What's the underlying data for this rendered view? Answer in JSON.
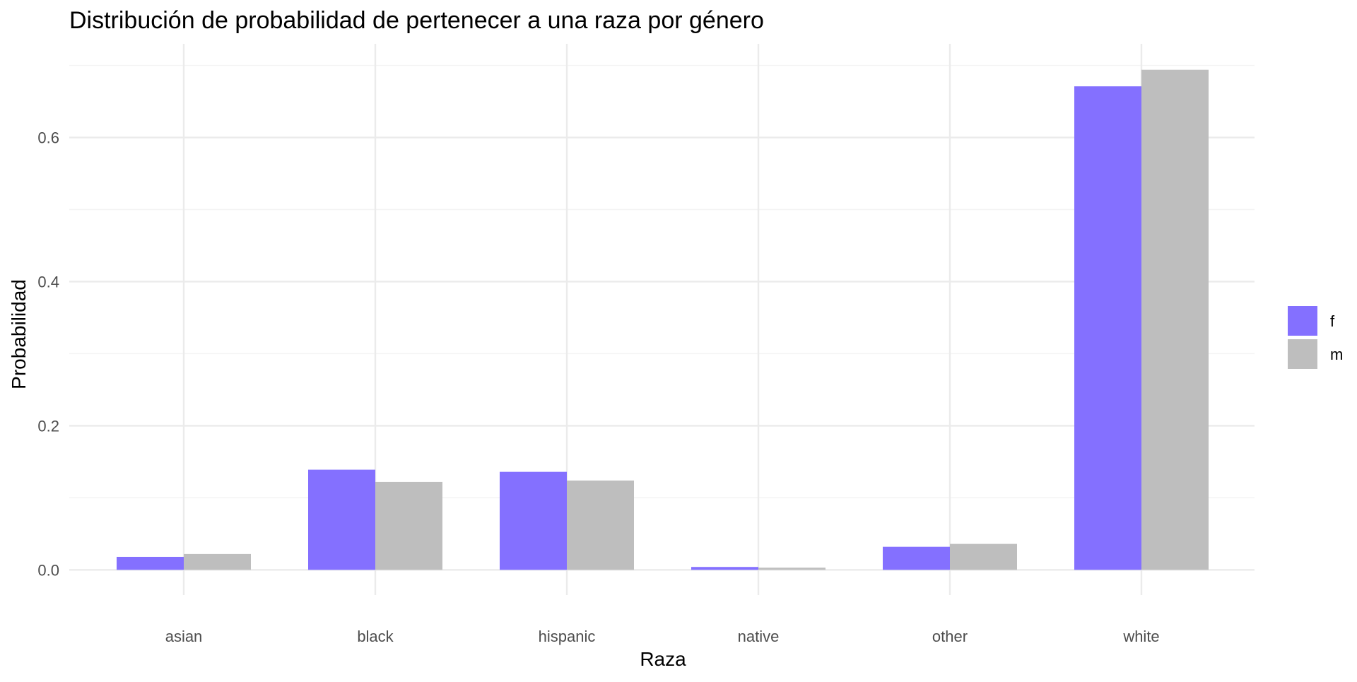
{
  "chart_data": {
    "type": "bar",
    "title": "Distribución de probabilidad de pertenecer a una raza por género",
    "xlabel": "Raza",
    "ylabel": "Probabilidad",
    "categories": [
      "asian",
      "black",
      "hispanic",
      "native",
      "other",
      "white"
    ],
    "series": [
      {
        "name": "f",
        "color": "#8470FF",
        "values": [
          0.018,
          0.139,
          0.136,
          0.004,
          0.032,
          0.671
        ]
      },
      {
        "name": "m",
        "color": "#BEBEBE",
        "values": [
          0.022,
          0.122,
          0.124,
          0.003,
          0.036,
          0.694
        ]
      }
    ],
    "ylim": [
      0,
      0.7
    ],
    "yticks": [
      0.0,
      0.2,
      0.4,
      0.6
    ],
    "ytick_labels": [
      "0.0",
      "0.2",
      "0.4",
      "0.6"
    ],
    "grid": true,
    "legend_position": "right"
  }
}
